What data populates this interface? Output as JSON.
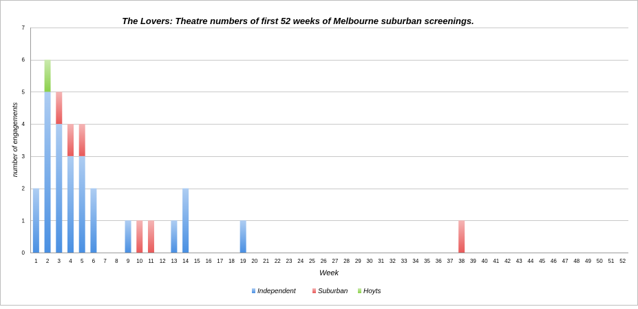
{
  "chart_data": {
    "type": "bar",
    "stacked": true,
    "title": "The Lovers: Theatre numbers of first 52 weeks of Melbourne suburban screenings.",
    "xlabel": "Week",
    "ylabel": "number of engagements",
    "ylim": [
      0,
      7
    ],
    "yticks": [
      0,
      1,
      2,
      3,
      4,
      5,
      6,
      7
    ],
    "grid": true,
    "legend_position": "bottom",
    "categories": [
      "1",
      "2",
      "3",
      "4",
      "5",
      "6",
      "7",
      "8",
      "9",
      "10",
      "11",
      "12",
      "13",
      "14",
      "15",
      "16",
      "17",
      "18",
      "19",
      "20",
      "21",
      "22",
      "23",
      "24",
      "25",
      "26",
      "27",
      "28",
      "29",
      "30",
      "31",
      "32",
      "33",
      "34",
      "35",
      "36",
      "37",
      "38",
      "39",
      "40",
      "41",
      "42",
      "43",
      "44",
      "45",
      "46",
      "47",
      "48",
      "49",
      "50",
      "51",
      "52"
    ],
    "series": [
      {
        "name": "Independent",
        "color": "#4a90e2",
        "values": [
          2,
          5,
          4,
          3,
          3,
          2,
          0,
          0,
          1,
          0,
          0,
          0,
          1,
          2,
          0,
          0,
          0,
          0,
          1,
          0,
          0,
          0,
          0,
          0,
          0,
          0,
          0,
          0,
          0,
          0,
          0,
          0,
          0,
          0,
          0,
          0,
          0,
          0,
          0,
          0,
          0,
          0,
          0,
          0,
          0,
          0,
          0,
          0,
          0,
          0,
          0,
          0
        ]
      },
      {
        "name": "Suburban",
        "color": "#e85a5a",
        "values": [
          0,
          0,
          1,
          1,
          1,
          0,
          0,
          0,
          0,
          1,
          1,
          0,
          0,
          0,
          0,
          0,
          0,
          0,
          0,
          0,
          0,
          0,
          0,
          0,
          0,
          0,
          0,
          0,
          0,
          0,
          0,
          0,
          0,
          0,
          0,
          0,
          0,
          1,
          0,
          0,
          0,
          0,
          0,
          0,
          0,
          0,
          0,
          0,
          0,
          0,
          0,
          0
        ]
      },
      {
        "name": "Hoyts",
        "color": "#8bd04a",
        "values": [
          0,
          1,
          0,
          0,
          0,
          0,
          0,
          0,
          0,
          0,
          0,
          0,
          0,
          0,
          0,
          0,
          0,
          0,
          0,
          0,
          0,
          0,
          0,
          0,
          0,
          0,
          0,
          0,
          0,
          0,
          0,
          0,
          0,
          0,
          0,
          0,
          0,
          0,
          0,
          0,
          0,
          0,
          0,
          0,
          0,
          0,
          0,
          0,
          0,
          0,
          0,
          0
        ]
      }
    ]
  }
}
